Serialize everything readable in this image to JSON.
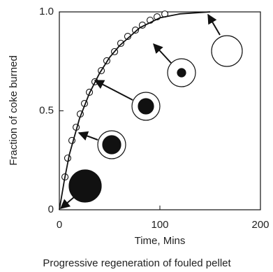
{
  "chart_data": {
    "type": "scatter",
    "caption": "Progressive regeneration of fouled pellet",
    "x_label": "Time, Mins",
    "y_label": "Fraction of coke burned",
    "xlim": [
      0,
      200
    ],
    "xticks": [
      0,
      100,
      200
    ],
    "ylim": [
      0,
      1
    ],
    "yticks": [
      0,
      0.5,
      {
        "value": 1,
        "label": "1.0"
      }
    ],
    "series": [
      {
        "mode": "markers",
        "color": "#111111",
        "x": [
          5.6,
          8.3,
          12.5,
          16.7,
          20.8,
          25,
          29.9,
          35.4,
          41.7,
          47.2,
          54.9,
          61.1,
          68,
          75.7,
          82.6,
          90.3,
          97.2,
          104.9
        ],
        "values": [
          0.166,
          0.261,
          0.35,
          0.417,
          0.484,
          0.537,
          0.594,
          0.647,
          0.703,
          0.753,
          0.799,
          0.841,
          0.876,
          0.908,
          0.933,
          0.958,
          0.975,
          0.989
        ]
      },
      {
        "mode": "line",
        "color": "#111111",
        "x": [
          0,
          5,
          10,
          20,
          30,
          40,
          50,
          60,
          80,
          100,
          120,
          150
        ],
        "values": [
          0,
          0.15,
          0.28,
          0.46,
          0.59,
          0.69,
          0.77,
          0.83,
          0.92,
          0.97,
          0.99,
          1.0
        ]
      }
    ]
  }
}
